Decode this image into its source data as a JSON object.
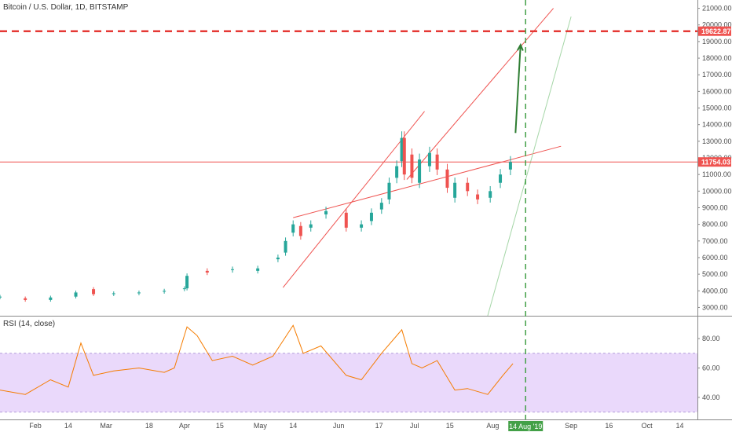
{
  "header": {
    "title": "Bitcoin / U.S. Dollar, 1D, BITSTAMP"
  },
  "rsi_panel": {
    "title": "RSI (14, close)"
  },
  "colors": {
    "bull": "#26a69a",
    "bear": "#ef5350",
    "target_line": "#e53935",
    "trend_line": "#ef5350",
    "rsi_line": "#f57c00",
    "rsi_band": "#ead9fb",
    "arrow": "#2e7d32",
    "projection_line": "#a5d6a7",
    "last_price_badge": "#ef5350",
    "marker_line": "#43a047"
  },
  "price_axis": {
    "ticks": [
      "21000.00",
      "20000.00",
      "19000.00",
      "18000.00",
      "17000.00",
      "16000.00",
      "15000.00",
      "14000.00",
      "13000.00",
      "12000.00",
      "11000.00",
      "10000.00",
      "9000.00",
      "8000.00",
      "7000.00",
      "6000.00",
      "5000.00",
      "4000.00",
      "3000.00"
    ],
    "target_label": "19622.87",
    "last_price_label": "11754.03"
  },
  "rsi_axis": {
    "ticks": [
      "80.00",
      "60.00",
      "40.00"
    ]
  },
  "time_axis": {
    "ticks": [
      "Feb",
      "14",
      "Mar",
      "18",
      "Apr",
      "15",
      "May",
      "14",
      "Jun",
      "17",
      "Jul",
      "15",
      "Aug",
      "Sep",
      "16",
      "Oct",
      "14"
    ],
    "marker_label": "14 Aug '19"
  },
  "chart_data": {
    "type": "candlestick",
    "title": "Bitcoin / U.S. Dollar, 1D, BITSTAMP",
    "x_range": [
      "2019-01-18",
      "2019-10-21"
    ],
    "y_range": [
      2500,
      21500
    ],
    "price_log_scale": false,
    "candles": [
      {
        "date": "2019-01-18",
        "open": 3600,
        "close": 3650
      },
      {
        "date": "2019-01-28",
        "open": 3550,
        "close": 3450
      },
      {
        "date": "2019-02-07",
        "open": 3450,
        "close": 3600
      },
      {
        "date": "2019-02-17",
        "open": 3650,
        "close": 3900
      },
      {
        "date": "2019-02-24",
        "open": 4100,
        "close": 3800
      },
      {
        "date": "2019-03-04",
        "open": 3800,
        "close": 3850
      },
      {
        "date": "2019-03-14",
        "open": 3850,
        "close": 3900
      },
      {
        "date": "2019-03-24",
        "open": 3950,
        "close": 4000
      },
      {
        "date": "2019-04-01",
        "open": 4100,
        "close": 4150
      },
      {
        "date": "2019-04-02",
        "open": 4150,
        "close": 4900
      },
      {
        "date": "2019-04-10",
        "open": 5200,
        "close": 5100
      },
      {
        "date": "2019-04-20",
        "open": 5250,
        "close": 5300
      },
      {
        "date": "2019-04-30",
        "open": 5200,
        "close": 5350
      },
      {
        "date": "2019-05-08",
        "open": 5900,
        "close": 6000
      },
      {
        "date": "2019-05-11",
        "open": 6300,
        "close": 7000
      },
      {
        "date": "2019-05-14",
        "open": 7500,
        "close": 8000
      },
      {
        "date": "2019-05-17",
        "open": 7900,
        "close": 7300
      },
      {
        "date": "2019-05-21",
        "open": 7800,
        "close": 8000
      },
      {
        "date": "2019-05-27",
        "open": 8600,
        "close": 8800
      },
      {
        "date": "2019-06-04",
        "open": 8700,
        "close": 7800
      },
      {
        "date": "2019-06-10",
        "open": 7800,
        "close": 8000
      },
      {
        "date": "2019-06-14",
        "open": 8200,
        "close": 8700
      },
      {
        "date": "2019-06-18",
        "open": 8900,
        "close": 9300
      },
      {
        "date": "2019-06-21",
        "open": 9500,
        "close": 10500
      },
      {
        "date": "2019-06-24",
        "open": 10800,
        "close": 11500
      },
      {
        "date": "2019-06-26",
        "open": 11800,
        "close": 13200
      },
      {
        "date": "2019-06-27",
        "open": 13200,
        "close": 11000
      },
      {
        "date": "2019-06-30",
        "open": 12200,
        "close": 10800
      },
      {
        "date": "2019-07-03",
        "open": 10500,
        "close": 11900
      },
      {
        "date": "2019-07-07",
        "open": 11500,
        "close": 12300
      },
      {
        "date": "2019-07-10",
        "open": 12200,
        "close": 11300
      },
      {
        "date": "2019-07-14",
        "open": 11300,
        "close": 10200
      },
      {
        "date": "2019-07-17",
        "open": 9600,
        "close": 10500
      },
      {
        "date": "2019-07-22",
        "open": 10500,
        "close": 10000
      },
      {
        "date": "2019-07-26",
        "open": 9800,
        "close": 9500
      },
      {
        "date": "2019-07-31",
        "open": 9600,
        "close": 10000
      },
      {
        "date": "2019-08-04",
        "open": 10500,
        "close": 11000
      },
      {
        "date": "2019-08-08",
        "open": 11300,
        "close": 11754
      }
    ],
    "rsi_14_close": [
      {
        "date": "2019-01-18",
        "value": 45
      },
      {
        "date": "2019-01-28",
        "value": 42
      },
      {
        "date": "2019-02-07",
        "value": 52
      },
      {
        "date": "2019-02-14",
        "value": 47
      },
      {
        "date": "2019-02-19",
        "value": 77
      },
      {
        "date": "2019-02-24",
        "value": 55
      },
      {
        "date": "2019-03-04",
        "value": 58
      },
      {
        "date": "2019-03-14",
        "value": 60
      },
      {
        "date": "2019-03-24",
        "value": 57
      },
      {
        "date": "2019-03-28",
        "value": 60
      },
      {
        "date": "2019-04-02",
        "value": 88
      },
      {
        "date": "2019-04-06",
        "value": 82
      },
      {
        "date": "2019-04-12",
        "value": 65
      },
      {
        "date": "2019-04-20",
        "value": 68
      },
      {
        "date": "2019-04-28",
        "value": 62
      },
      {
        "date": "2019-05-06",
        "value": 68
      },
      {
        "date": "2019-05-14",
        "value": 89
      },
      {
        "date": "2019-05-18",
        "value": 70
      },
      {
        "date": "2019-05-25",
        "value": 75
      },
      {
        "date": "2019-06-04",
        "value": 55
      },
      {
        "date": "2019-06-10",
        "value": 52
      },
      {
        "date": "2019-06-18",
        "value": 70
      },
      {
        "date": "2019-06-26",
        "value": 86
      },
      {
        "date": "2019-06-30",
        "value": 63
      },
      {
        "date": "2019-07-04",
        "value": 60
      },
      {
        "date": "2019-07-10",
        "value": 65
      },
      {
        "date": "2019-07-17",
        "value": 45
      },
      {
        "date": "2019-07-22",
        "value": 46
      },
      {
        "date": "2019-07-30",
        "value": 42
      },
      {
        "date": "2019-08-05",
        "value": 55
      },
      {
        "date": "2019-08-09",
        "value": 63
      }
    ],
    "rsi_band": [
      30,
      70
    ],
    "rsi_y_range": [
      25,
      95
    ],
    "annotations": {
      "target_level": 19622.87,
      "last_price_level": 11754.03,
      "marker_date": "2019-08-14",
      "trendlines": [
        {
          "from": {
            "date": "2019-05-10",
            "price": 4200
          },
          "to": {
            "date": "2019-07-05",
            "price": 14800
          },
          "color": "trend_line"
        },
        {
          "from": {
            "date": "2019-05-14",
            "price": 8400
          },
          "to": {
            "date": "2019-08-28",
            "price": 12700
          },
          "color": "trend_line"
        },
        {
          "from": {
            "date": "2019-06-28",
            "price": 10700
          },
          "to": {
            "date": "2019-08-25",
            "price": 21000
          },
          "color": "trend_line"
        },
        {
          "from": {
            "date": "2019-07-30",
            "price": 2500
          },
          "to": {
            "date": "2019-09-01",
            "price": 20500
          },
          "color": "projection_line"
        }
      ],
      "arrow": {
        "from": {
          "date": "2019-08-10",
          "price": 13500
        },
        "to": {
          "date": "2019-08-12",
          "price": 18800
        }
      }
    }
  }
}
